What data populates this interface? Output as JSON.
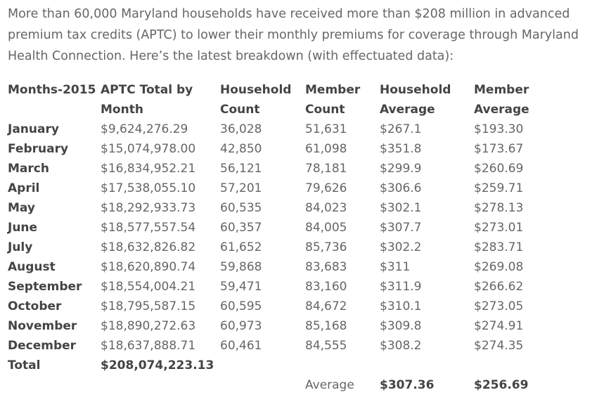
{
  "intro": "More than 60,000 Maryland households have received more than $208 million in advanced premium tax credits (APTC) to lower their monthly premiums for coverage through Maryland Health Connection. Here’s the latest breakdown (with effectuated data):",
  "table": {
    "header": [
      "Months-2015",
      "APTC Total by Month",
      "Household Count",
      "Member Count",
      "Household Average",
      "Member Average"
    ],
    "rows": [
      [
        "January",
        "$9,624,276.29",
        "36,028",
        "51,631",
        "$267.1",
        "$193.30"
      ],
      [
        "February",
        "$15,074,978.00",
        "42,850",
        "61,098",
        "$351.8",
        "$173.67"
      ],
      [
        "March",
        "$16,834,952.21",
        "56,121",
        "78,181",
        "$299.9",
        "$260.69"
      ],
      [
        "April",
        "$17,538,055.10",
        "57,201",
        "79,626",
        "$306.6",
        "$259.71"
      ],
      [
        "May",
        "$18,292,933.73",
        "60,535",
        "84,023",
        "$302.1",
        "$278.13"
      ],
      [
        "June",
        "$18,577,557.54",
        "60,357",
        "84,005",
        "$307.7",
        "$273.01"
      ],
      [
        "July",
        "$18,632,826.82",
        "61,652",
        "85,736",
        "$302.2",
        "$283.71"
      ],
      [
        "August",
        "$18,620,890.74",
        "59,868",
        "83,683",
        "$311",
        "$269.08"
      ],
      [
        "September",
        "$18,554,004.21",
        "59,471",
        "83,160",
        "$311.9",
        "$266.62"
      ],
      [
        "October",
        "$18,795,587.15",
        "60,595",
        "84,672",
        "$310.1",
        "$273.05"
      ],
      [
        "November",
        "$18,890,272.63",
        "60,973",
        "85,168",
        "$309.8",
        "$274.91"
      ],
      [
        "December",
        "$18,637,888.71",
        "60,461",
        "84,555",
        "$308.2",
        "$274.35"
      ]
    ],
    "total": [
      "Total",
      "$208,074,223.13"
    ],
    "average": [
      "Average",
      "$307.36",
      "$256.69"
    ]
  }
}
